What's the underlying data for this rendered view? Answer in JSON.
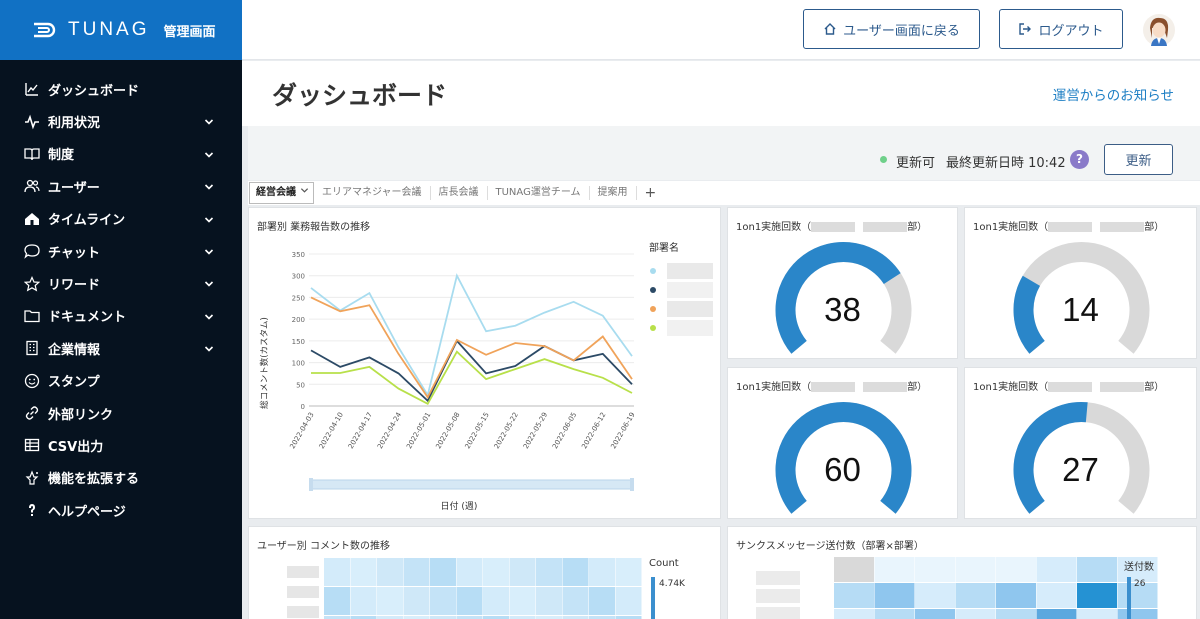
{
  "app": {
    "logo_text": "TUNAG",
    "logo_sub": "管理画面"
  },
  "sidebar": {
    "items": [
      {
        "label": "ダッシュボード",
        "icon": "chart-line-icon",
        "expandable": false
      },
      {
        "label": "利用状況",
        "icon": "activity-icon",
        "expandable": true
      },
      {
        "label": "制度",
        "icon": "book-icon",
        "expandable": true
      },
      {
        "label": "ユーザー",
        "icon": "users-icon",
        "expandable": true
      },
      {
        "label": "タイムライン",
        "icon": "home-icon",
        "expandable": true
      },
      {
        "label": "チャット",
        "icon": "chat-bubble-icon",
        "expandable": true
      },
      {
        "label": "リワード",
        "icon": "star-icon",
        "expandable": true
      },
      {
        "label": "ドキュメント",
        "icon": "folder-icon",
        "expandable": true
      },
      {
        "label": "企業情報",
        "icon": "building-icon",
        "expandable": true
      },
      {
        "label": "スタンプ",
        "icon": "smiley-icon",
        "expandable": false
      },
      {
        "label": "外部リンク",
        "icon": "link-icon",
        "expandable": false
      },
      {
        "label": "CSV出力",
        "icon": "table-icon",
        "expandable": false
      },
      {
        "label": "機能を拡張する",
        "icon": "sparkle-icon",
        "expandable": false
      },
      {
        "label": "ヘルプページ",
        "icon": "help-bulb-icon",
        "expandable": false
      }
    ]
  },
  "topbar": {
    "back_button": "ユーザー画面に戻る",
    "logout_button": "ログアウト"
  },
  "page": {
    "title": "ダッシュボード",
    "news_link": "運営からのお知らせ"
  },
  "status": {
    "state": "更新可",
    "last_updated": "最終更新日時 10:42",
    "help": "?",
    "refresh_button": "更新"
  },
  "tabs": {
    "items": [
      "経営会議",
      "エリアマネジャー会議",
      "店長会議",
      "TUNAG運営チーム",
      "提案用"
    ],
    "active": 0,
    "add": "+"
  },
  "panels": {
    "line_chart_title": "部署別 業務報告数の推移",
    "legend_title": "部署名",
    "gauge_title_prefix": "1on1実施回数（",
    "gauge_title_suffix": "部）",
    "user_heatmap_title": "ユーザー別 コメント数の推移",
    "user_heatmap_legend_title": "Count",
    "user_heatmap_legend_max": "4.74K",
    "thanks_heatmap_title": "サンクスメッセージ送付数（部署×部署）",
    "thanks_heatmap_legend_title": "送付数",
    "thanks_heatmap_legend_max": "26"
  },
  "gauges": [
    {
      "value": 38,
      "fraction": 0.72
    },
    {
      "value": 14,
      "fraction": 0.27
    },
    {
      "value": 60,
      "fraction": 1.0
    },
    {
      "value": 27,
      "fraction": 0.52
    }
  ],
  "chart_data": {
    "type": "line",
    "title": "部署別 業務報告数の推移",
    "xlabel": "日付 (週)",
    "ylabel": "総コメント数(カスタム)",
    "ylim": [
      0,
      350
    ],
    "yticks": [
      "0",
      "50",
      "100",
      "150",
      "200",
      "250",
      "300",
      "350"
    ],
    "categories": [
      "2022-04-03",
      "2022-04-10",
      "2022-04-17",
      "2022-04-24",
      "2022-05-01",
      "2022-05-08",
      "2022-05-15",
      "2022-05-22",
      "2022-05-29",
      "2022-06-05",
      "2022-06-12",
      "2022-06-19"
    ],
    "legend_position": "right",
    "grid": true,
    "series": [
      {
        "color": "#a8dcef",
        "values": [
          272,
          220,
          260,
          135,
          25,
          300,
          172,
          185,
          215,
          240,
          208,
          115
        ]
      },
      {
        "color": "#2c4a66",
        "values": [
          128,
          90,
          112,
          75,
          12,
          150,
          75,
          92,
          138,
          105,
          120,
          50
        ]
      },
      {
        "color": "#f0a35a",
        "values": [
          250,
          218,
          232,
          120,
          20,
          152,
          118,
          145,
          138,
          105,
          160,
          62
        ]
      },
      {
        "color": "#b8e04a",
        "values": [
          76,
          76,
          90,
          40,
          5,
          125,
          62,
          85,
          108,
          85,
          65,
          30
        ]
      }
    ]
  }
}
